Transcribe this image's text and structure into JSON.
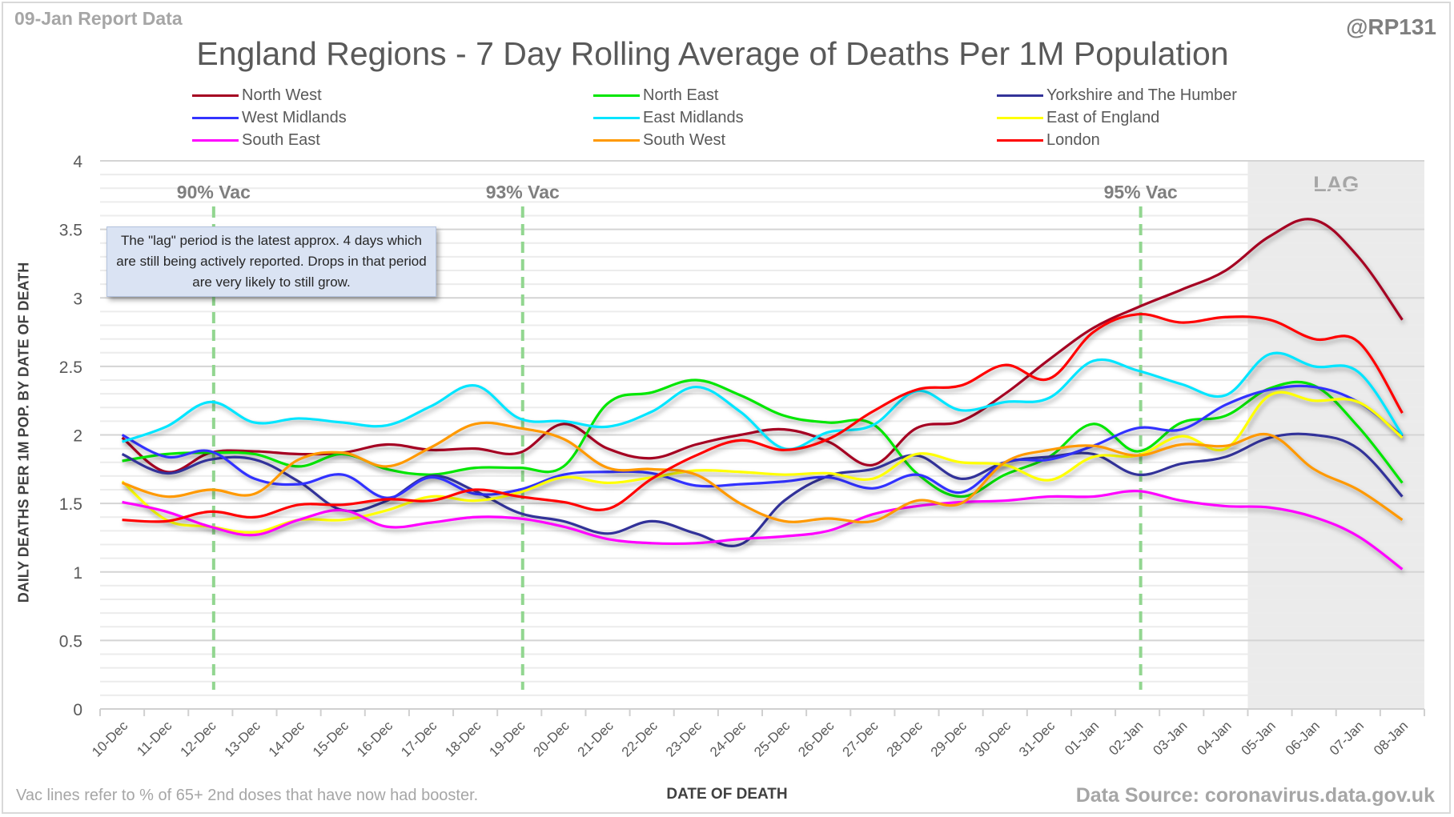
{
  "header": {
    "report_label": "09-Jan Report Data",
    "handle": "@RP131",
    "title": "England Regions - 7 Day Rolling Average of Deaths Per 1M Population"
  },
  "footer": {
    "note": "Vac lines refer to % of 65+ 2nd doses that have now had booster.",
    "source": "Data Source: coronavirus.data.gov.uk"
  },
  "annotation": {
    "text": "The \"lag\" period is the latest approx. 4 days which are still being actively reported.  Drops in that period are very likely to still grow."
  },
  "chart_data": {
    "type": "line",
    "title": "England Regions - 7 Day Rolling Average of Deaths Per 1M Population",
    "xlabel": "DATE OF DEATH",
    "ylabel": "DAILY DEATHS PER 1M POP. BY DATE OF DEATH",
    "ylim": [
      0,
      4
    ],
    "yticks": [
      "0",
      "0.5",
      "1",
      "1.5",
      "2",
      "2.5",
      "3",
      "3.5",
      "4"
    ],
    "ytick_values": [
      0,
      0.5,
      1,
      1.5,
      2,
      2.5,
      3,
      3.5,
      4
    ],
    "minor_grid_step": 0.1,
    "grid": true,
    "legend_position": "top",
    "categories": [
      "10-Dec",
      "11-Dec",
      "12-Dec",
      "13-Dec",
      "14-Dec",
      "15-Dec",
      "16-Dec",
      "17-Dec",
      "18-Dec",
      "19-Dec",
      "20-Dec",
      "21-Dec",
      "22-Dec",
      "23-Dec",
      "24-Dec",
      "25-Dec",
      "26-Dec",
      "27-Dec",
      "28-Dec",
      "29-Dec",
      "30-Dec",
      "31-Dec",
      "01-Jan",
      "02-Jan",
      "03-Jan",
      "04-Jan",
      "05-Jan",
      "06-Jan",
      "07-Jan",
      "08-Jan"
    ],
    "series": [
      {
        "name": "North West",
        "color": "#a50021",
        "values": [
          1.98,
          1.73,
          1.87,
          1.88,
          1.86,
          1.87,
          1.93,
          1.89,
          1.9,
          1.87,
          2.08,
          1.9,
          1.83,
          1.93,
          2.0,
          2.04,
          1.95,
          1.78,
          2.05,
          2.1,
          2.3,
          2.55,
          2.78,
          2.93,
          3.06,
          3.2,
          3.45,
          3.57,
          3.3,
          2.84
        ]
      },
      {
        "name": "North East",
        "color": "#00e600",
        "values": [
          1.81,
          1.86,
          1.87,
          1.86,
          1.77,
          1.86,
          1.75,
          1.71,
          1.76,
          1.76,
          1.77,
          2.23,
          2.31,
          2.4,
          2.29,
          2.14,
          2.09,
          2.08,
          1.72,
          1.55,
          1.71,
          1.84,
          2.08,
          1.88,
          2.09,
          2.14,
          2.34,
          2.36,
          2.06,
          1.65
        ]
      },
      {
        "name": "Yorkshire and The Humber",
        "color": "#333399",
        "values": [
          1.86,
          1.72,
          1.82,
          1.82,
          1.66,
          1.45,
          1.52,
          1.7,
          1.59,
          1.43,
          1.37,
          1.28,
          1.37,
          1.28,
          1.2,
          1.52,
          1.7,
          1.75,
          1.85,
          1.68,
          1.8,
          1.84,
          1.86,
          1.71,
          1.79,
          1.84,
          1.98,
          2.0,
          1.9,
          1.55
        ]
      },
      {
        "name": "West Midlands",
        "color": "#3333ff",
        "values": [
          2.0,
          1.84,
          1.88,
          1.68,
          1.64,
          1.71,
          1.54,
          1.69,
          1.57,
          1.6,
          1.71,
          1.73,
          1.72,
          1.63,
          1.64,
          1.66,
          1.69,
          1.61,
          1.71,
          1.58,
          1.8,
          1.82,
          1.92,
          2.05,
          2.04,
          2.22,
          2.33,
          2.35,
          2.24,
          1.99
        ]
      },
      {
        "name": "East Midlands",
        "color": "#00e5ff",
        "values": [
          1.95,
          2.06,
          2.24,
          2.09,
          2.12,
          2.09,
          2.07,
          2.21,
          2.36,
          2.12,
          2.1,
          2.06,
          2.17,
          2.35,
          2.17,
          1.9,
          2.02,
          2.07,
          2.32,
          2.18,
          2.24,
          2.27,
          2.54,
          2.47,
          2.37,
          2.29,
          2.59,
          2.5,
          2.46,
          2.0
        ]
      },
      {
        "name": "East of England",
        "color": "#ffff00",
        "values": [
          1.66,
          1.38,
          1.33,
          1.29,
          1.38,
          1.38,
          1.45,
          1.55,
          1.52,
          1.58,
          1.69,
          1.65,
          1.69,
          1.74,
          1.73,
          1.71,
          1.72,
          1.68,
          1.86,
          1.8,
          1.78,
          1.67,
          1.84,
          1.85,
          1.99,
          1.9,
          2.29,
          2.25,
          2.24,
          1.98
        ]
      },
      {
        "name": "South East",
        "color": "#ff00ff",
        "values": [
          1.51,
          1.44,
          1.33,
          1.27,
          1.38,
          1.45,
          1.33,
          1.36,
          1.4,
          1.39,
          1.33,
          1.24,
          1.21,
          1.21,
          1.24,
          1.26,
          1.3,
          1.42,
          1.48,
          1.51,
          1.52,
          1.55,
          1.55,
          1.59,
          1.52,
          1.48,
          1.47,
          1.4,
          1.26,
          1.02
        ]
      },
      {
        "name": "South West",
        "color": "#ff9900",
        "values": [
          1.65,
          1.55,
          1.6,
          1.57,
          1.82,
          1.87,
          1.77,
          1.91,
          2.08,
          2.05,
          1.97,
          1.76,
          1.75,
          1.71,
          1.5,
          1.37,
          1.39,
          1.37,
          1.52,
          1.5,
          1.8,
          1.89,
          1.92,
          1.85,
          1.93,
          1.92,
          2.0,
          1.75,
          1.6,
          1.38
        ]
      },
      {
        "name": "London",
        "color": "#ff0000",
        "values": [
          1.38,
          1.37,
          1.44,
          1.4,
          1.49,
          1.49,
          1.53,
          1.52,
          1.6,
          1.55,
          1.51,
          1.46,
          1.68,
          1.85,
          1.96,
          1.89,
          1.97,
          2.17,
          2.33,
          2.36,
          2.51,
          2.41,
          2.75,
          2.88,
          2.82,
          2.86,
          2.84,
          2.7,
          2.68,
          2.16
        ]
      }
    ],
    "vac_lines": [
      {
        "label": "90% Vac",
        "category": "12-Dec",
        "color": "#92d690"
      },
      {
        "label": "93% Vac",
        "category": "19-Dec",
        "color": "#92d690"
      },
      {
        "label": "95% Vac",
        "category": "02-Jan",
        "color": "#92d690"
      }
    ],
    "lag_region": {
      "label": "LAG",
      "from_category": "05-Jan",
      "to_category": "08-Jan",
      "color": "#ebebeb"
    }
  }
}
